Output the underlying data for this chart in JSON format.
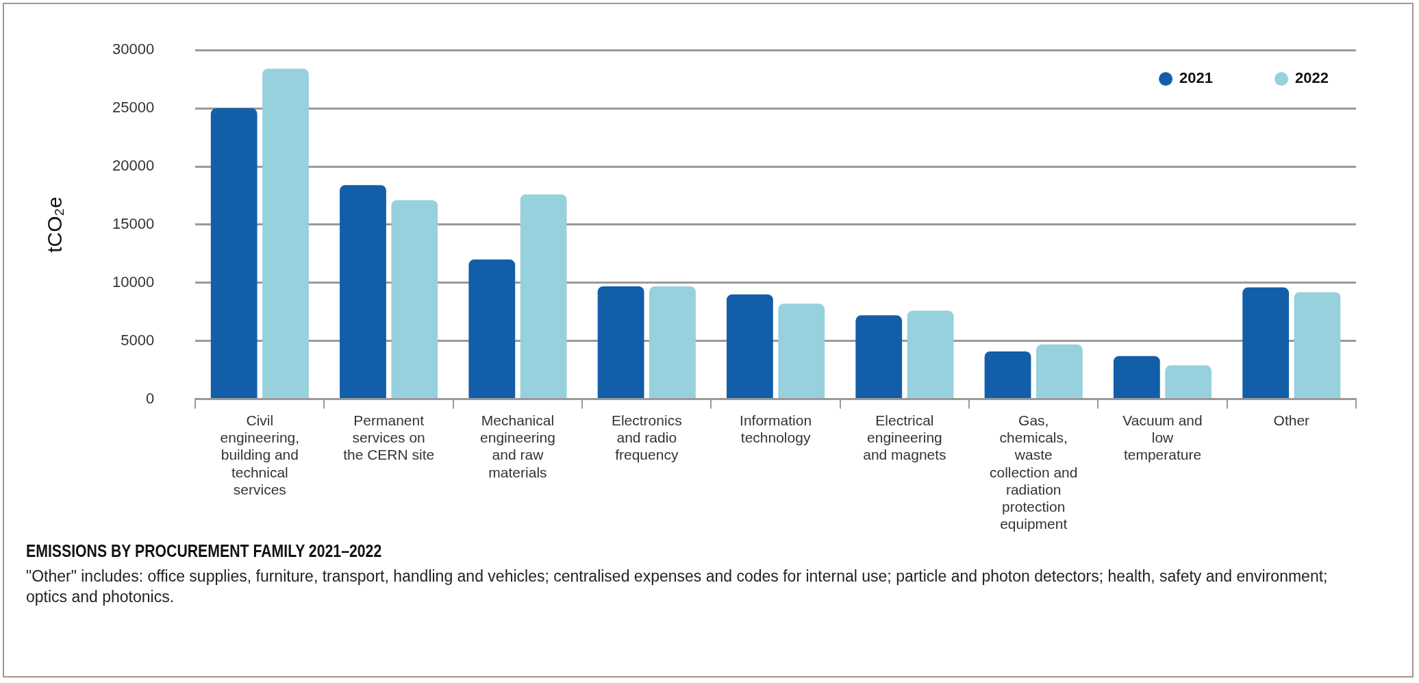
{
  "chart_data": {
    "type": "bar",
    "title": "EMISSIONS BY PROCUREMENT FAMILY 2021–2022",
    "ylabel": "tCO₂e",
    "categories": [
      "Civil engineering, building and technical services",
      "Permanent services on the CERN site",
      "Mechanical engineering and raw materials",
      "Electronics and radio frequency",
      "Information technology",
      "Electrical engineering and magnets",
      "Gas, chemicals, waste collection and radiation protection equipment",
      "Vacuum and low temperature",
      "Other"
    ],
    "series": [
      {
        "name": "2021",
        "color": "#125ea9",
        "values": [
          25000,
          18400,
          12000,
          9700,
          9000,
          7200,
          4100,
          3700,
          9600
        ]
      },
      {
        "name": "2022",
        "color": "#97d1dd",
        "values": [
          28400,
          17100,
          17600,
          9700,
          8200,
          7600,
          4700,
          2900,
          9200
        ]
      }
    ],
    "ylim": [
      0,
      30000
    ],
    "yticks": [
      0,
      5000,
      10000,
      15000,
      20000,
      25000,
      30000
    ],
    "grid": "y",
    "legend": "top right",
    "annotations": [
      "\"Other\" includes: office supplies, furniture, transport, handling and vehicles; centralised expenses and codes for internal use; particle and photon detectors; health, safety and environment; optics and photonics."
    ]
  }
}
